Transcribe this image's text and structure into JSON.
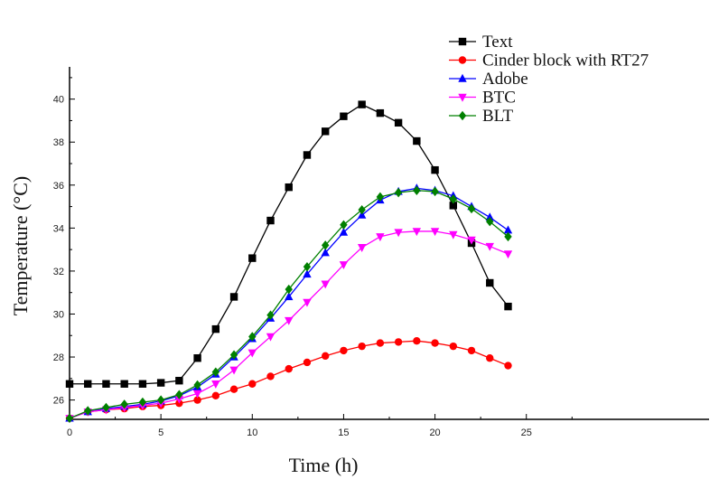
{
  "chart_data": {
    "type": "line",
    "title": "",
    "xlabel": "Time (h)",
    "ylabel": "Temperature (°C)",
    "xlim": [
      0,
      35
    ],
    "ylim": [
      25.1,
      41.5
    ],
    "xticks": [
      0,
      5,
      10,
      15,
      20,
      25
    ],
    "yticks": [
      26,
      28,
      30,
      32,
      34,
      36,
      38,
      40
    ],
    "grid": false,
    "legend_position": "top-right",
    "x": [
      0,
      1,
      2,
      3,
      4,
      5,
      6,
      7,
      8,
      9,
      10,
      11,
      12,
      13,
      14,
      15,
      16,
      17,
      18,
      19,
      20,
      21,
      22,
      23,
      24
    ],
    "series": [
      {
        "name": "Text",
        "color": "#000000",
        "marker": "square",
        "values": [
          26.75,
          26.75,
          26.75,
          26.75,
          26.75,
          26.8,
          26.9,
          27.95,
          29.3,
          30.8,
          32.6,
          34.35,
          35.9,
          37.4,
          38.5,
          39.2,
          39.75,
          39.35,
          38.9,
          38.05,
          36.7,
          35.05,
          33.3,
          31.45,
          30.35
        ]
      },
      {
        "name": "Cinder block with RT27",
        "color": "#ff0000",
        "marker": "circle",
        "values": [
          25.15,
          25.45,
          25.55,
          25.6,
          25.7,
          25.75,
          25.85,
          26.0,
          26.2,
          26.5,
          26.75,
          27.1,
          27.45,
          27.75,
          28.05,
          28.3,
          28.5,
          28.65,
          28.7,
          28.75,
          28.65,
          28.5,
          28.3,
          27.95,
          27.6
        ]
      },
      {
        "name": "Adobe",
        "color": "#0000ff",
        "marker": "triangle-up",
        "values": [
          25.15,
          25.45,
          25.6,
          25.7,
          25.8,
          25.95,
          26.2,
          26.6,
          27.2,
          28.0,
          28.85,
          29.8,
          30.8,
          31.85,
          32.85,
          33.8,
          34.6,
          35.3,
          35.7,
          35.85,
          35.75,
          35.5,
          35.0,
          34.5,
          33.9
        ]
      },
      {
        "name": "BTC",
        "color": "#ff00ff",
        "marker": "triangle-down",
        "values": [
          25.15,
          25.45,
          25.55,
          25.65,
          25.75,
          25.85,
          26.05,
          26.3,
          26.75,
          27.4,
          28.2,
          28.95,
          29.7,
          30.55,
          31.4,
          32.3,
          33.1,
          33.6,
          33.8,
          33.85,
          33.85,
          33.7,
          33.45,
          33.15,
          32.8
        ]
      },
      {
        "name": "BLT",
        "color": "#008000",
        "marker": "diamond",
        "values": [
          25.15,
          25.5,
          25.65,
          25.8,
          25.9,
          26.0,
          26.25,
          26.7,
          27.3,
          28.1,
          28.95,
          29.95,
          31.15,
          32.2,
          33.2,
          34.15,
          34.85,
          35.45,
          35.65,
          35.75,
          35.7,
          35.35,
          34.9,
          34.3,
          33.6
        ]
      }
    ]
  }
}
